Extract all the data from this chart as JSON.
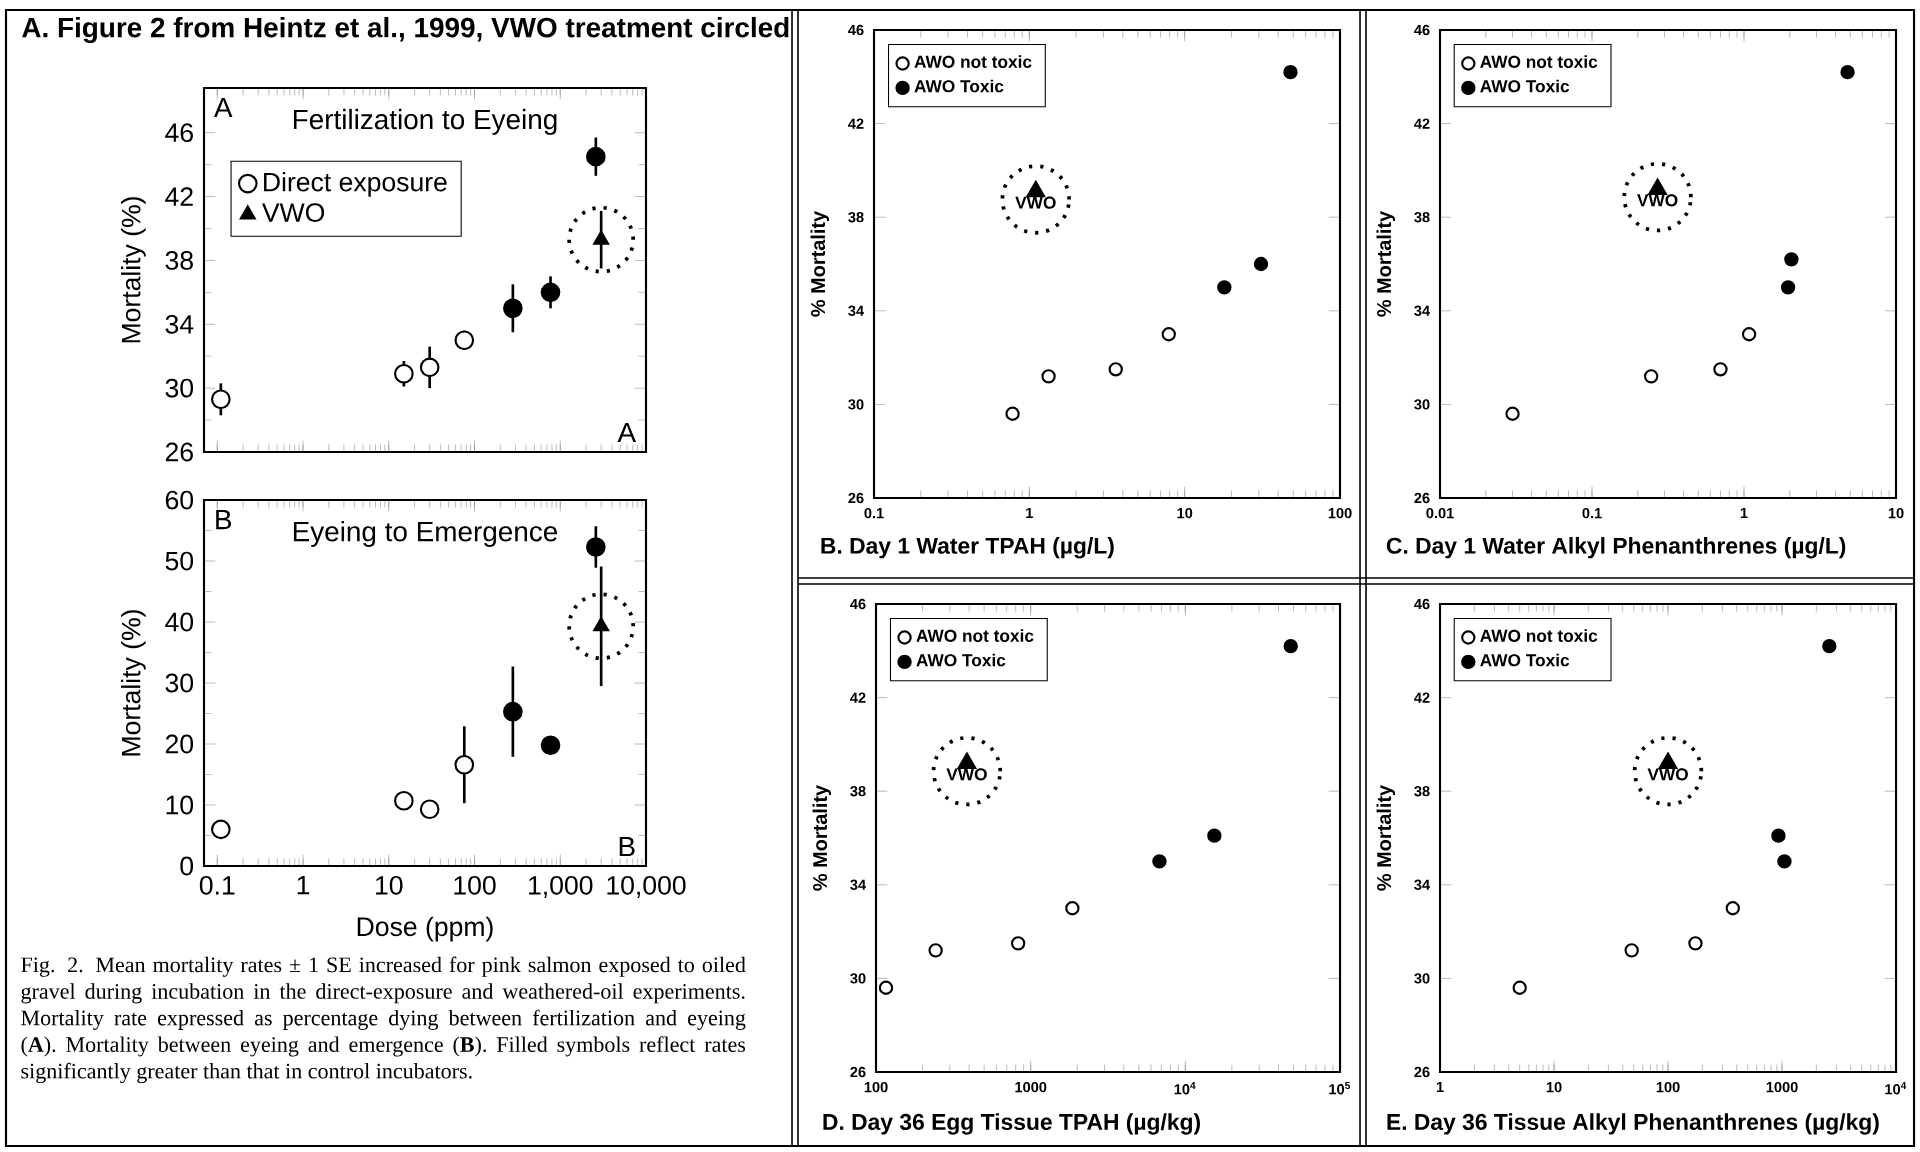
{
  "chart_data": [
    {
      "type": "scatter",
      "title": "A. Figure 2 from Heintz et al., 1999, VWO treatment circled",
      "subtitle": "Fertilization to Eyeing",
      "ylabel": "Mortality (%)",
      "log": "x",
      "xlim": [
        0.07,
        10000
      ],
      "xticks": [
        0.1,
        1,
        10,
        100,
        1000,
        10000
      ],
      "ylim": [
        26,
        48.8
      ],
      "yticks": [
        26,
        30,
        34,
        38,
        42,
        46
      ],
      "tick_labels": "y",
      "legend": "top left",
      "marker": "circle",
      "annotations": [
        "A",
        "A"
      ],
      "series": [
        {
          "name": "Direct exposure",
          "color": "#ffffff",
          "x": [
            0.11,
            15,
            30,
            76
          ],
          "values": [
            29.3,
            30.9,
            31.3,
            33.0
          ],
          "errors": [
            1.0,
            0.8,
            1.3,
            0.6
          ]
        },
        {
          "color": "#000000",
          "x": [
            280,
            770,
            2600
          ],
          "values": [
            35.0,
            36.0,
            44.5
          ],
          "errors": [
            1.5,
            1.0,
            1.2
          ]
        },
        {
          "name": "VWO",
          "color": "#000000",
          "marker": "triangle",
          "x": [
            3000
          ],
          "values": [
            39.3
          ],
          "errors": [
            1.8
          ]
        }
      ]
    },
    {
      "type": "scatter",
      "title": "Eyeing to Emergence",
      "xlabel": "Dose (ppm)",
      "ylabel": "Mortality (%)",
      "log": "x",
      "xlim": [
        0.07,
        10000
      ],
      "xticks": [
        0.1,
        1,
        10,
        100,
        {
          "value": 1000,
          "label": "1,000"
        },
        {
          "value": 10000,
          "label": "10,000"
        }
      ],
      "ylim": [
        0,
        60
      ],
      "yticks": [
        0,
        10,
        20,
        30,
        40,
        50,
        60
      ],
      "marker": "circle",
      "annotations": [
        "B",
        "B",
        "Fig. 2. Mean mortality rates ± 1 SE increased for pink salmon exposed to oiled gravel during incubation in the direct-exposure and weathered-oil experiments. Mortality rate expressed as percentage dying between fertilization and eyeing (**A**). Mortality between eyeing and emergence (**B**). Filled symbols reflect rates significantly greater than that in control incubators."
      ],
      "series": [
        {
          "color": "#ffffff",
          "x": [
            0.11,
            15,
            30,
            76
          ],
          "values": [
            6.0,
            10.7,
            9.3,
            16.6
          ],
          "errors": [
            null,
            1.1,
            0.6,
            6.3
          ]
        },
        {
          "color": "#000000",
          "x": [
            280,
            770,
            2600
          ],
          "values": [
            25.3,
            19.8,
            52.3
          ],
          "errors": [
            7.4,
            1.1,
            3.4
          ]
        },
        {
          "color": "#000000",
          "marker": "triangle",
          "x": [
            3000
          ],
          "values": [
            39.3
          ],
          "errors": [
            9.8
          ]
        }
      ]
    },
    {
      "type": "scatter",
      "xlabel": "B. Day 1 Water TPAH (µg/L)",
      "ylabel": "% Mortality",
      "log": "x",
      "xlim": [
        0.1,
        100
      ],
      "xticks": [
        0.1,
        1,
        10,
        100
      ],
      "ylim": [
        26,
        46
      ],
      "yticks": [
        26,
        30,
        34,
        38,
        42,
        46
      ],
      "legend": "top left",
      "marker": "circle",
      "annotations": [
        {
          "text": "VWO",
          "x": 1.1,
          "y": 39.1
        }
      ],
      "series": [
        {
          "name": "AWO not toxic",
          "color": "#ffffff",
          "x": [
            0.78,
            1.33,
            3.6,
            7.9
          ],
          "values": [
            29.6,
            31.2,
            31.5,
            33.0
          ]
        },
        {
          "name": "AWO Toxic",
          "color": "#000000",
          "x": [
            18,
            31,
            48
          ],
          "values": [
            35.0,
            36.0,
            44.2
          ]
        },
        {
          "color": "#000000",
          "marker": "triangle",
          "x": [
            1.1
          ],
          "values": [
            39.1
          ]
        }
      ]
    },
    {
      "type": "scatter",
      "xlabel": "C. Day 1 Water Alkyl Phenanthrenes (µg/L)",
      "ylabel": "% Mortality",
      "log": "x",
      "xlim": [
        0.01,
        10
      ],
      "xticks": [
        0.01,
        0.1,
        1,
        10
      ],
      "ylim": [
        26,
        46
      ],
      "yticks": [
        26,
        30,
        34,
        38,
        42,
        46
      ],
      "legend": "top left",
      "marker": "circle",
      "annotations": [
        {
          "text": "VWO",
          "x": 0.27,
          "y": 39.2
        }
      ],
      "series": [
        {
          "name": "AWO not toxic",
          "color": "#ffffff",
          "x": [
            0.03,
            0.245,
            0.7,
            1.08
          ],
          "values": [
            29.6,
            31.2,
            31.5,
            33.0
          ]
        },
        {
          "name": "AWO Toxic",
          "color": "#000000",
          "x": [
            1.95,
            2.05,
            4.8
          ],
          "values": [
            35.0,
            36.2,
            44.2
          ]
        },
        {
          "color": "#000000",
          "marker": "triangle",
          "x": [
            0.27
          ],
          "values": [
            39.2
          ]
        }
      ]
    },
    {
      "type": "scatter",
      "xlabel": "D. Day 36 Egg Tissue TPAH (µg/kg)",
      "ylabel": "% Mortality",
      "log": "x",
      "xlim": [
        100,
        100000
      ],
      "xticks": [
        100,
        1000,
        {
          "value": 10000,
          "label": "10$^{4}$"
        },
        {
          "value": 100000,
          "label": "10$^{5}$"
        }
      ],
      "ylim": [
        26,
        46
      ],
      "yticks": [
        26,
        30,
        34,
        38,
        42,
        46
      ],
      "legend": "top left",
      "marker": "circle",
      "annotations": [
        {
          "text": "VWO",
          "x": 387,
          "y": 39.2
        }
      ],
      "series": [
        {
          "name": "AWO not toxic",
          "color": "#ffffff",
          "x": [
            116,
            243,
            830,
            1860
          ],
          "values": [
            29.6,
            31.2,
            31.5,
            33.0
          ]
        },
        {
          "name": "AWO Toxic",
          "color": "#000000",
          "x": [
            6800,
            15400,
            48000
          ],
          "values": [
            35.0,
            36.1,
            44.2
          ]
        },
        {
          "color": "#000000",
          "marker": "triangle",
          "x": [
            387
          ],
          "values": [
            39.2
          ]
        }
      ]
    },
    {
      "type": "scatter",
      "xlabel": "E. Day 36 Tissue Alkyl Phenanthrenes (µg/kg)",
      "ylabel": "% Mortality",
      "log": "x",
      "xlim": [
        1,
        10000
      ],
      "xticks": [
        1,
        10,
        100,
        1000,
        {
          "value": 10000,
          "label": "10$^{4}$"
        }
      ],
      "ylim": [
        26,
        46
      ],
      "yticks": [
        26,
        30,
        34,
        38,
        42,
        46
      ],
      "legend": "top left",
      "marker": "circle",
      "annotations": [
        {
          "text": "VWO",
          "x": 100,
          "y": 39.2
        }
      ],
      "series": [
        {
          "name": "AWO not toxic",
          "color": "#ffffff",
          "x": [
            5.0,
            48,
            174,
            370
          ],
          "values": [
            29.6,
            31.2,
            31.5,
            33.0
          ]
        },
        {
          "name": "AWO Toxic",
          "color": "#000000",
          "x": [
            930,
            1050,
            2600
          ],
          "values": [
            36.1,
            35.0,
            44.2
          ]
        },
        {
          "color": "#000000",
          "marker": "triangle",
          "x": [
            100
          ],
          "values": [
            39.2
          ]
        }
      ]
    }
  ]
}
